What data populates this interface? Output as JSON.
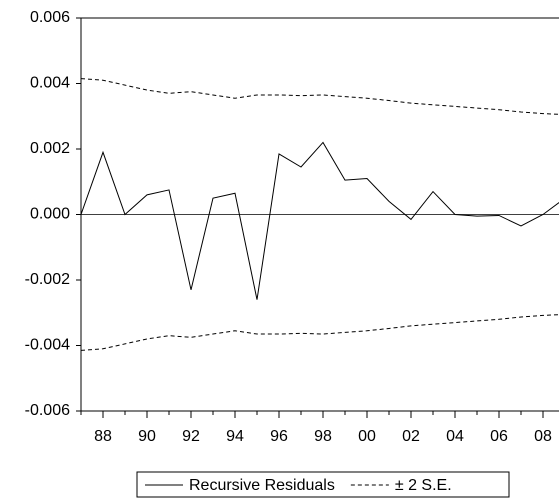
{
  "chart_data": {
    "type": "line",
    "categories": [
      null,
      "88",
      null,
      "90",
      null,
      "92",
      null,
      "94",
      null,
      "96",
      null,
      "98",
      null,
      "00",
      null,
      "02",
      null,
      "04",
      null,
      "06",
      null,
      "08",
      null
    ],
    "series": [
      {
        "name": "Recursive Residuals",
        "color": "#000000",
        "style": "solid",
        "values": [
          0.0,
          0.0019,
          0.0,
          0.0006,
          0.00075,
          -0.0023,
          0.0005,
          0.00065,
          -0.0026,
          0.00185,
          0.00145,
          0.0022,
          0.00105,
          0.0011,
          0.0004,
          -0.00015,
          0.0007,
          0.0,
          -5e-05,
          -3e-05,
          -0.00035,
          0.0,
          0.0005
        ]
      },
      {
        "name": "± 2 S.E.",
        "color": "#000000",
        "style": "dashed",
        "values": [
          0.00415,
          0.0041,
          0.00395,
          0.0038,
          0.0037,
          0.00375,
          0.00365,
          0.00355,
          0.00365,
          0.00365,
          0.00363,
          0.00365,
          0.0036,
          0.00355,
          0.00348,
          0.0034,
          0.00335,
          0.0033,
          0.00325,
          0.0032,
          0.00313,
          0.00308,
          0.00305
        ],
        "lower_values": [
          -0.00415,
          -0.0041,
          -0.00395,
          -0.0038,
          -0.0037,
          -0.00375,
          -0.00365,
          -0.00355,
          -0.00365,
          -0.00365,
          -0.00363,
          -0.00365,
          -0.0036,
          -0.00355,
          -0.00348,
          -0.0034,
          -0.00335,
          -0.0033,
          -0.00325,
          -0.0032,
          -0.00313,
          -0.00308,
          -0.00305
        ]
      }
    ],
    "ylim": [
      -0.006,
      0.006
    ],
    "yticks": [
      {
        "value": -0.006,
        "label": "-0.006"
      },
      {
        "value": -0.004,
        "label": "-0.004"
      },
      {
        "value": -0.002,
        "label": "-0.002"
      },
      {
        "value": 0,
        "label": "0.000"
      },
      {
        "value": 0.002,
        "label": "0.002"
      },
      {
        "value": 0.004,
        "label": "0.004"
      },
      {
        "value": 0.006,
        "label": "0.006"
      }
    ],
    "zero_line": true,
    "legend": "bottom"
  }
}
